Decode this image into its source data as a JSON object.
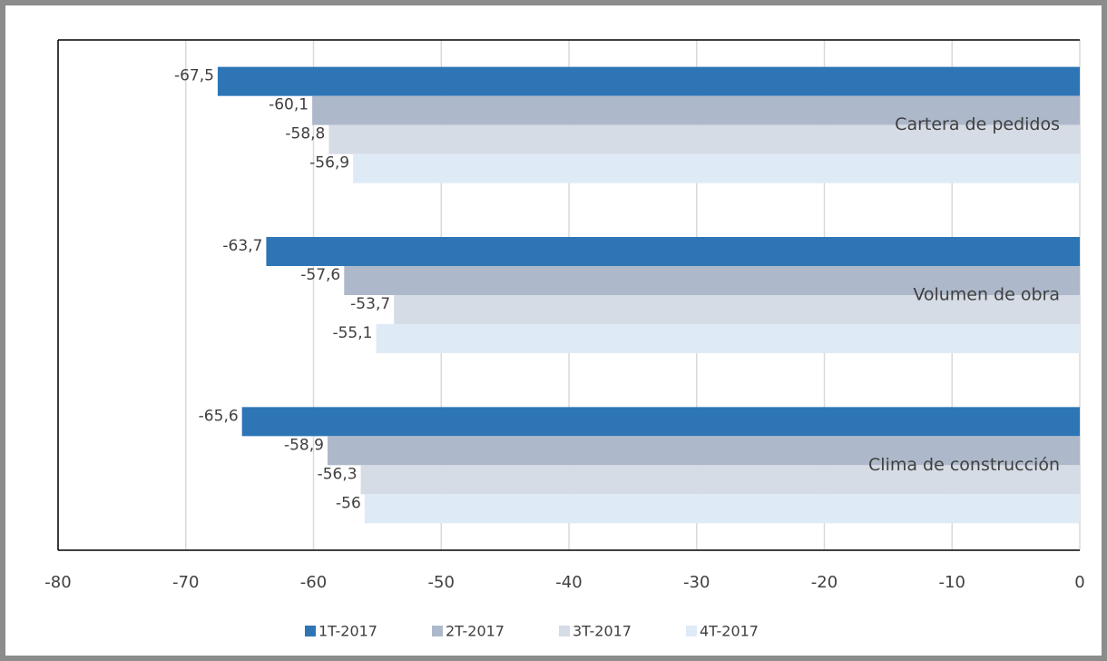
{
  "chart_data": {
    "type": "bar",
    "orientation": "horizontal",
    "categories": [
      "Cartera de pedidos",
      "Volumen de obra",
      "Clima de construcción"
    ],
    "series": [
      {
        "name": "1T-2017",
        "color": "#2e75b6",
        "values": [
          -67.5,
          -63.7,
          -65.6
        ],
        "value_labels": [
          "-67,5",
          "-63,7",
          "-65,6"
        ]
      },
      {
        "name": "2T-2017",
        "color": "#adb9ca",
        "values": [
          -60.1,
          -57.6,
          -58.9
        ],
        "value_labels": [
          "-60,1",
          "-57,6",
          "-58,9"
        ]
      },
      {
        "name": "3T-2017",
        "color": "#d6dce5",
        "values": [
          -58.8,
          -53.7,
          -56.3
        ],
        "value_labels": [
          "-58,8",
          "-53,7",
          "-56,3"
        ]
      },
      {
        "name": "4T-2017",
        "color": "#deebf7",
        "values": [
          -56.9,
          -55.1,
          -56
        ],
        "value_labels": [
          "-56,9",
          "-55,1",
          "-56"
        ]
      }
    ],
    "xlim": [
      -80,
      0
    ],
    "xticks": [
      -80,
      -70,
      -60,
      -50,
      -40,
      -30,
      -20,
      -10,
      0
    ],
    "grid": true,
    "legend": "bottom"
  }
}
